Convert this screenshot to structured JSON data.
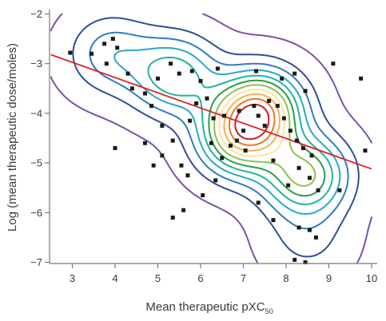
{
  "chart_data": {
    "type": "contour-scatter",
    "title": "",
    "xlabel": {
      "main": "Mean therapeutic pXC",
      "subscript": "50"
    },
    "ylabel": "Log (mean therapeutic dose/moles)",
    "xlim": [
      2.5,
      10
    ],
    "ylim": [
      -7,
      -2
    ],
    "x_ticks": [
      3,
      4,
      5,
      6,
      7,
      8,
      9,
      10
    ],
    "x_tick_labels": [
      "3",
      "4",
      "5",
      "6",
      "7",
      "8",
      "9",
      "10"
    ],
    "y_ticks": [
      -2,
      -3,
      -4,
      -5,
      -6,
      -7
    ],
    "y_tick_labels": [
      "−2",
      "−3",
      "−4",
      "−5",
      "−6",
      "−7"
    ],
    "grid": false,
    "regression_line": {
      "color": "#e02020",
      "x": [
        2.5,
        10
      ],
      "y": [
        -2.82,
        -5.12
      ]
    },
    "contour_colors": [
      "#7b52a8",
      "#2f4f96",
      "#2e7bc4",
      "#27a9c9",
      "#21b39b",
      "#2a9d49",
      "#8cc24f",
      "#fbe3a6",
      "#f6b04e",
      "#e77a1f",
      "#c61e2d"
    ],
    "density_peaks": [
      {
        "x": 7.4,
        "y": -3.9,
        "level": 11
      },
      {
        "x": 8.45,
        "y": -5.25,
        "level": 9
      },
      {
        "x": 6.9,
        "y": -4.5,
        "level": 9
      },
      {
        "x": 5.4,
        "y": -3.25,
        "level": 7
      },
      {
        "x": 3.9,
        "y": -2.8,
        "level": 4
      },
      {
        "x": 8.5,
        "y": -6.55,
        "level": 2
      }
    ],
    "points": [
      [
        2.95,
        -2.78
      ],
      [
        3.45,
        -2.8
      ],
      [
        3.75,
        -2.6
      ],
      [
        3.95,
        -2.5
      ],
      [
        4.05,
        -2.68
      ],
      [
        3.8,
        -3.0
      ],
      [
        4.3,
        -3.2
      ],
      [
        4.4,
        -3.5
      ],
      [
        4.0,
        -4.7
      ],
      [
        4.7,
        -4.6
      ],
      [
        4.9,
        -5.05
      ],
      [
        5.1,
        -4.85
      ],
      [
        5.55,
        -5.05
      ],
      [
        5.7,
        -5.25
      ],
      [
        5.6,
        -5.95
      ],
      [
        5.35,
        -6.1
      ],
      [
        4.7,
        -3.6
      ],
      [
        4.85,
        -3.85
      ],
      [
        5.1,
        -4.25
      ],
      [
        5.0,
        -3.3
      ],
      [
        5.3,
        -3.0
      ],
      [
        5.5,
        -3.2
      ],
      [
        5.8,
        -3.15
      ],
      [
        6.0,
        -3.35
      ],
      [
        5.9,
        -3.8
      ],
      [
        6.15,
        -3.7
      ],
      [
        5.75,
        -4.15
      ],
      [
        6.3,
        -4.1
      ],
      [
        6.55,
        -4.05
      ],
      [
        6.9,
        -3.95
      ],
      [
        7.25,
        -3.85
      ],
      [
        7.6,
        -3.75
      ],
      [
        7.8,
        -3.85
      ],
      [
        7.35,
        -4.05
      ],
      [
        7.5,
        -4.25
      ],
      [
        7.95,
        -4.1
      ],
      [
        8.1,
        -4.35
      ],
      [
        8.25,
        -4.55
      ],
      [
        8.4,
        -4.7
      ],
      [
        8.6,
        -4.85
      ],
      [
        7.0,
        -4.35
      ],
      [
        6.85,
        -4.55
      ],
      [
        7.05,
        -4.75
      ],
      [
        6.7,
        -4.65
      ],
      [
        7.7,
        -4.95
      ],
      [
        8.3,
        -5.1
      ],
      [
        8.55,
        -5.3
      ],
      [
        8.05,
        -5.45
      ],
      [
        8.75,
        -5.55
      ],
      [
        9.25,
        -5.55
      ],
      [
        9.85,
        -4.75
      ],
      [
        9.1,
        -3.0
      ],
      [
        9.75,
        -3.3
      ],
      [
        6.4,
        -3.1
      ],
      [
        7.3,
        -3.15
      ],
      [
        7.9,
        -3.3
      ],
      [
        8.2,
        -3.2
      ],
      [
        8.45,
        -3.55
      ],
      [
        6.05,
        -5.65
      ],
      [
        6.35,
        -5.35
      ],
      [
        7.35,
        -5.8
      ],
      [
        7.7,
        -6.15
      ],
      [
        8.3,
        -6.3
      ],
      [
        8.55,
        -6.35
      ],
      [
        8.7,
        -6.5
      ],
      [
        8.2,
        -6.95
      ],
      [
        8.45,
        -7.0
      ],
      [
        6.5,
        -4.9
      ],
      [
        6.25,
        -4.6
      ],
      [
        5.35,
        -4.55
      ]
    ]
  }
}
